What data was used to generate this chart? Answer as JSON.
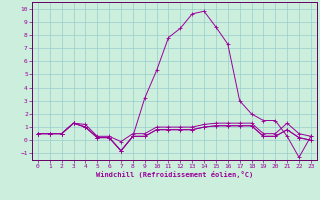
{
  "xlabel": "Windchill (Refroidissement éolien,°C)",
  "ylabel": "",
  "background_color": "#cceedd",
  "grid_color": "#99cccc",
  "line_color": "#990099",
  "spine_color": "#660066",
  "xlim": [
    -0.5,
    23.5
  ],
  "ylim": [
    -1.5,
    10.5
  ],
  "xticks": [
    0,
    1,
    2,
    3,
    4,
    5,
    6,
    7,
    8,
    9,
    10,
    11,
    12,
    13,
    14,
    15,
    16,
    17,
    18,
    19,
    20,
    21,
    22,
    23
  ],
  "yticks": [
    -1,
    0,
    1,
    2,
    3,
    4,
    5,
    6,
    7,
    8,
    9,
    10
  ],
  "series": [
    [
      0.5,
      0.5,
      0.5,
      1.3,
      1.2,
      0.3,
      0.3,
      -0.1,
      0.5,
      0.5,
      1.0,
      1.0,
      1.0,
      1.0,
      1.2,
      1.3,
      1.3,
      1.3,
      1.3,
      0.5,
      0.5,
      1.3,
      0.5,
      0.3
    ],
    [
      0.5,
      0.5,
      0.5,
      1.3,
      1.0,
      0.2,
      0.2,
      -0.8,
      0.3,
      0.3,
      0.8,
      0.8,
      0.8,
      0.8,
      1.0,
      1.1,
      1.1,
      1.1,
      1.1,
      0.3,
      0.3,
      0.8,
      0.2,
      0.0
    ],
    [
      0.5,
      0.5,
      0.5,
      1.3,
      1.0,
      0.2,
      0.2,
      -0.8,
      0.3,
      0.3,
      0.8,
      0.8,
      0.8,
      0.8,
      1.0,
      1.1,
      1.1,
      1.1,
      1.1,
      0.3,
      0.3,
      0.8,
      0.2,
      0.0
    ],
    [
      0.5,
      0.5,
      0.5,
      1.3,
      1.0,
      0.2,
      0.2,
      -0.8,
      0.3,
      3.2,
      5.3,
      7.8,
      8.5,
      9.6,
      9.8,
      8.6,
      7.3,
      3.0,
      2.0,
      1.5,
      1.5,
      0.3,
      -1.3,
      0.3
    ]
  ]
}
